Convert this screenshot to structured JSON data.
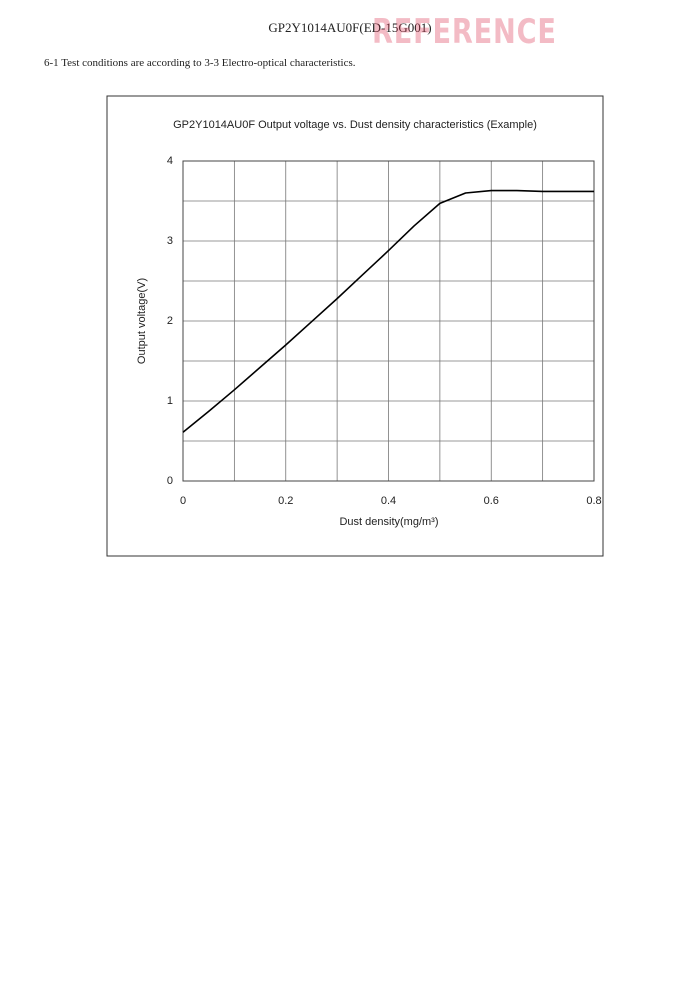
{
  "header": {
    "title": "GP2Y1014AU0F(ED-15G001)",
    "stamp": "REFERENCE"
  },
  "intro": "6-1 Test conditions are according to 3-3 Electro-optical characteristics.",
  "chart_data": {
    "type": "line",
    "title": "GP2Y1014AU0F Output voltage vs. Dust density characteristics (Example)",
    "x_label": "Dust density(mg/m³)",
    "y_label": "Output voltage(V)",
    "x": [
      0,
      0.05,
      0.1,
      0.15,
      0.2,
      0.25,
      0.3,
      0.35,
      0.4,
      0.45,
      0.5,
      0.55,
      0.6,
      0.65,
      0.7,
      0.75,
      0.8
    ],
    "series": [
      {
        "name": "Output voltage",
        "color": "#000000",
        "values": [
          0.61,
          0.87,
          1.14,
          1.42,
          1.7,
          1.99,
          2.28,
          2.58,
          2.88,
          3.19,
          3.47,
          3.6,
          3.63,
          3.63,
          3.62,
          3.62,
          3.62
        ]
      }
    ],
    "xlim": [
      0,
      0.8
    ],
    "xticks": [
      0,
      0.2,
      0.4,
      0.6,
      0.8
    ],
    "x_minor_ticks": [
      0.1,
      0.3,
      0.5,
      0.7
    ],
    "ylim": [
      0,
      4
    ],
    "yticks": [
      0,
      1,
      2,
      3,
      4
    ],
    "y_minor_ticks": [
      0.5,
      1.5,
      2.5,
      3.5
    ],
    "grid": true
  }
}
